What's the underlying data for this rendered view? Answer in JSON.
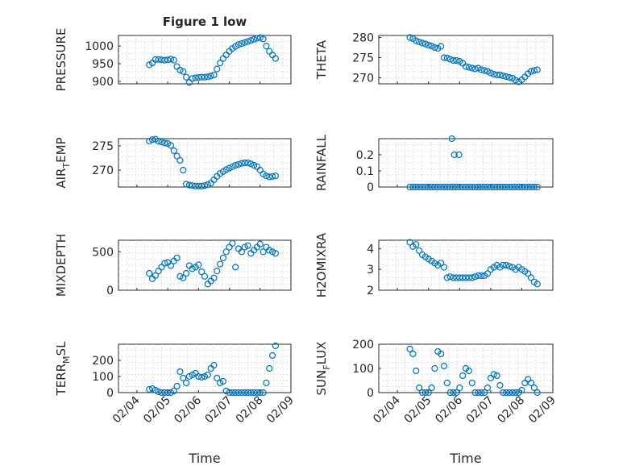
{
  "chart_data": [
    {
      "id": "pressure",
      "type": "scatter",
      "title": "Figure 1 low",
      "ylabel_main": "PRESSURE",
      "ylabel_sub": "",
      "ylabel_rest": "",
      "xlim": [
        3.4,
        9.0
      ],
      "ylim": [
        893,
        1030
      ],
      "yticks": [
        900,
        950,
        1000
      ],
      "yticklabels": [
        "900",
        "950",
        "1000"
      ],
      "xticks": [
        4,
        5,
        6,
        7,
        8,
        9
      ],
      "xticklabels": [],
      "xlabel": "",
      "x": [
        4.4,
        4.5,
        4.6,
        4.7,
        4.8,
        4.9,
        5.0,
        5.1,
        5.2,
        5.3,
        5.4,
        5.5,
        5.6,
        5.7,
        5.8,
        5.9,
        6.0,
        6.1,
        6.2,
        6.3,
        6.4,
        6.5,
        6.6,
        6.7,
        6.8,
        6.9,
        7.0,
        7.1,
        7.2,
        7.3,
        7.4,
        7.5,
        7.6,
        7.7,
        7.8,
        7.9,
        8.0,
        8.1,
        8.2,
        8.3,
        8.4,
        8.5
      ],
      "y": [
        947,
        952,
        962,
        962,
        961,
        960,
        961,
        963,
        960,
        942,
        932,
        928,
        912,
        897,
        908,
        910,
        911,
        912,
        912,
        913,
        915,
        918,
        935,
        952,
        965,
        975,
        985,
        993,
        999,
        1004,
        1007,
        1010,
        1013,
        1016,
        1019,
        1022,
        1024,
        1020,
        1000,
        985,
        975,
        965
      ]
    },
    {
      "id": "theta",
      "type": "scatter",
      "title": "",
      "ylabel_main": "THETA",
      "ylabel_sub": "",
      "ylabel_rest": "",
      "xlim": [
        3.4,
        9.0
      ],
      "ylim": [
        268.5,
        280.5
      ],
      "yticks": [
        270,
        275,
        280
      ],
      "yticklabels": [
        "270",
        "275",
        "280"
      ],
      "xticks": [
        4,
        5,
        6,
        7,
        8,
        9
      ],
      "xticklabels": [],
      "xlabel": "",
      "x": [
        4.4,
        4.5,
        4.6,
        4.7,
        4.8,
        4.9,
        5.0,
        5.1,
        5.2,
        5.3,
        5.4,
        5.5,
        5.6,
        5.7,
        5.8,
        5.9,
        6.0,
        6.1,
        6.2,
        6.3,
        6.4,
        6.5,
        6.6,
        6.7,
        6.8,
        6.9,
        7.0,
        7.1,
        7.2,
        7.3,
        7.4,
        7.5,
        7.6,
        7.7,
        7.8,
        7.9,
        8.0,
        8.1,
        8.2,
        8.3,
        8.4,
        8.5
      ],
      "y": [
        280,
        279.7,
        279.2,
        278.9,
        278.6,
        278.4,
        278.1,
        277.9,
        277.5,
        277.3,
        277.8,
        275,
        274.9,
        274.6,
        274.3,
        274.3,
        274.1,
        273.6,
        272.8,
        272.6,
        272.4,
        272.2,
        272.4,
        272.0,
        271.8,
        271.6,
        271.2,
        270.9,
        270.7,
        270.7,
        270.5,
        270.3,
        270.1,
        269.9,
        269.4,
        269.0,
        269.5,
        270.2,
        271.0,
        271.6,
        271.8,
        272.0
      ]
    },
    {
      "id": "airtemp",
      "type": "scatter",
      "title": "",
      "ylabel_main": "AIR",
      "ylabel_sub": "T",
      "ylabel_rest": "EMP",
      "xlim": [
        3.4,
        9.0
      ],
      "ylim": [
        266.5,
        276.5
      ],
      "yticks": [
        270,
        275
      ],
      "yticklabels": [
        "270",
        "275"
      ],
      "xticks": [
        4,
        5,
        6,
        7,
        8,
        9
      ],
      "xticklabels": [],
      "xlabel": "",
      "x": [
        4.4,
        4.5,
        4.6,
        4.7,
        4.8,
        4.9,
        5.0,
        5.1,
        5.2,
        5.3,
        5.4,
        5.5,
        5.6,
        5.7,
        5.8,
        5.9,
        6.0,
        6.1,
        6.2,
        6.3,
        6.4,
        6.5,
        6.6,
        6.7,
        6.8,
        6.9,
        7.0,
        7.1,
        7.2,
        7.3,
        7.4,
        7.5,
        7.6,
        7.7,
        7.8,
        7.9,
        8.0,
        8.1,
        8.2,
        8.3,
        8.4,
        8.5
      ],
      "y": [
        276,
        276.3,
        276.4,
        276.0,
        275.8,
        275.6,
        275.5,
        275.1,
        274.0,
        272.9,
        272.0,
        270.0,
        267.1,
        266.9,
        266.8,
        266.7,
        266.7,
        266.7,
        266.8,
        267.0,
        267.3,
        268.0,
        268.7,
        269.3,
        269.7,
        270.1,
        270.4,
        270.7,
        271.0,
        271.2,
        271.4,
        271.5,
        271.5,
        271.3,
        271.0,
        270.7,
        270.0,
        269.2,
        268.8,
        268.6,
        268.7,
        268.8
      ]
    },
    {
      "id": "rainfall",
      "type": "scatter",
      "title": "",
      "ylabel_main": "RAINFALL",
      "ylabel_sub": "",
      "ylabel_rest": "",
      "xlim": [
        3.4,
        9.0
      ],
      "ylim": [
        0,
        0.3
      ],
      "yticks": [
        0,
        0.1,
        0.2
      ],
      "yticklabels": [
        "0",
        "0.1",
        "0.2"
      ],
      "xticks": [
        4,
        5,
        6,
        7,
        8,
        9
      ],
      "xticklabels": [],
      "xlabel": "",
      "x": [
        4.4,
        4.5,
        4.6,
        4.7,
        4.8,
        4.9,
        5.0,
        5.1,
        5.2,
        5.3,
        5.4,
        5.5,
        5.6,
        5.7,
        5.8,
        5.9,
        6.0,
        6.1,
        6.2,
        6.3,
        6.4,
        6.5,
        6.6,
        6.7,
        6.8,
        6.9,
        7.0,
        7.1,
        7.2,
        7.3,
        7.4,
        7.5,
        7.6,
        7.7,
        7.8,
        7.9,
        8.0,
        8.1,
        8.2,
        8.3,
        8.4,
        8.5,
        5.75,
        5.83,
        5.98
      ],
      "y": [
        0,
        0,
        0,
        0,
        0,
        0,
        0,
        0,
        0,
        0,
        0,
        0,
        0,
        0,
        0,
        0,
        0,
        0,
        0,
        0,
        0,
        0,
        0,
        0,
        0,
        0,
        0,
        0,
        0,
        0,
        0,
        0,
        0,
        0,
        0,
        0,
        0,
        0,
        0,
        0,
        0,
        0,
        0.3,
        0.2,
        0.2
      ]
    },
    {
      "id": "mixdepth",
      "type": "scatter",
      "title": "",
      "ylabel_main": "MIXDEPTH",
      "ylabel_sub": "",
      "ylabel_rest": "",
      "xlim": [
        3.4,
        9.0
      ],
      "ylim": [
        0,
        650
      ],
      "yticks": [
        0,
        500
      ],
      "yticklabels": [
        "0",
        "500"
      ],
      "xticks": [
        4,
        5,
        6,
        7,
        8,
        9
      ],
      "xticklabels": [],
      "xlabel": "",
      "x": [
        4.4,
        4.5,
        4.6,
        4.7,
        4.8,
        4.9,
        5.0,
        5.1,
        5.2,
        5.3,
        5.4,
        5.5,
        5.6,
        5.7,
        5.8,
        5.9,
        6.0,
        6.1,
        6.2,
        6.3,
        6.4,
        6.5,
        6.6,
        6.7,
        6.8,
        6.9,
        7.0,
        7.1,
        7.2,
        7.3,
        7.4,
        7.5,
        7.6,
        7.7,
        7.8,
        7.9,
        8.0,
        8.1,
        8.2,
        8.3,
        8.4,
        8.5
      ],
      "y": [
        220,
        150,
        190,
        250,
        300,
        350,
        360,
        320,
        380,
        420,
        180,
        160,
        220,
        320,
        280,
        300,
        330,
        240,
        180,
        80,
        120,
        160,
        250,
        340,
        420,
        500,
        560,
        610,
        300,
        540,
        500,
        560,
        580,
        480,
        520,
        560,
        600,
        500,
        560,
        520,
        500,
        480
      ]
    },
    {
      "id": "h2omixra",
      "type": "scatter",
      "title": "",
      "ylabel_main": "H2OMIXRA",
      "ylabel_sub": "",
      "ylabel_rest": "",
      "xlim": [
        3.4,
        9.0
      ],
      "ylim": [
        2,
        4.4
      ],
      "yticks": [
        2,
        3,
        4
      ],
      "yticklabels": [
        "2",
        "3",
        "4"
      ],
      "xticks": [
        4,
        5,
        6,
        7,
        8,
        9
      ],
      "xticklabels": [],
      "xlabel": "",
      "x": [
        4.4,
        4.5,
        4.6,
        4.7,
        4.8,
        4.9,
        5.0,
        5.1,
        5.2,
        5.3,
        5.4,
        5.5,
        5.6,
        5.7,
        5.8,
        5.9,
        6.0,
        6.1,
        6.2,
        6.3,
        6.4,
        6.5,
        6.6,
        6.7,
        6.8,
        6.9,
        7.0,
        7.1,
        7.2,
        7.3,
        7.4,
        7.5,
        7.6,
        7.7,
        7.8,
        7.9,
        8.0,
        8.1,
        8.2,
        8.3,
        8.4,
        8.5
      ],
      "y": [
        4.3,
        4.1,
        4.2,
        3.9,
        3.7,
        3.6,
        3.5,
        3.4,
        3.3,
        3.2,
        3.3,
        3.1,
        2.6,
        2.65,
        2.6,
        2.6,
        2.6,
        2.6,
        2.6,
        2.6,
        2.6,
        2.65,
        2.7,
        2.7,
        2.7,
        2.8,
        3.0,
        3.1,
        3.2,
        3.1,
        3.2,
        3.2,
        3.15,
        3.1,
        3.0,
        3.1,
        3.0,
        2.9,
        2.8,
        2.6,
        2.4,
        2.3
      ]
    },
    {
      "id": "terrmsl",
      "type": "scatter",
      "title": "",
      "ylabel_main": "TERR",
      "ylabel_sub": "M",
      "ylabel_rest": "SL",
      "xlim": [
        3.4,
        9.0
      ],
      "ylim": [
        0,
        300
      ],
      "yticks": [
        0,
        100,
        200
      ],
      "yticklabels": [
        "0",
        "100",
        "200"
      ],
      "xticks": [
        4,
        5,
        6,
        7,
        8,
        9
      ],
      "xticklabels": [
        "02/04",
        "02/05",
        "02/06",
        "02/07",
        "02/08",
        "02/09"
      ],
      "xlabel": "Time",
      "x": [
        4.4,
        4.5,
        4.6,
        4.7,
        4.8,
        4.9,
        5.0,
        5.1,
        5.2,
        5.3,
        5.4,
        5.5,
        5.6,
        5.7,
        5.8,
        5.9,
        6.0,
        6.1,
        6.2,
        6.3,
        6.4,
        6.5,
        6.6,
        6.7,
        6.8,
        6.9,
        7.0,
        7.1,
        7.2,
        7.3,
        7.4,
        7.5,
        7.6,
        7.7,
        7.8,
        7.9,
        8.0,
        8.1,
        8.2,
        8.3,
        8.4,
        8.5
      ],
      "y": [
        20,
        25,
        15,
        5,
        0,
        0,
        0,
        0,
        10,
        40,
        130,
        90,
        60,
        100,
        110,
        120,
        100,
        95,
        100,
        110,
        150,
        170,
        90,
        60,
        70,
        10,
        0,
        0,
        0,
        0,
        0,
        0,
        0,
        0,
        0,
        0,
        0,
        0,
        60,
        150,
        230,
        290
      ]
    },
    {
      "id": "sunflux",
      "type": "scatter",
      "title": "",
      "ylabel_main": "SUN",
      "ylabel_sub": "F",
      "ylabel_rest": "LUX",
      "xlim": [
        3.4,
        9.0
      ],
      "ylim": [
        0,
        200
      ],
      "yticks": [
        0,
        100,
        200
      ],
      "yticklabels": [
        "0",
        "100",
        "200"
      ],
      "xticks": [
        4,
        5,
        6,
        7,
        8,
        9
      ],
      "xticklabels": [
        "02/04",
        "02/05",
        "02/06",
        "02/07",
        "02/08",
        "02/09"
      ],
      "xlabel": "Time",
      "x": [
        4.4,
        4.5,
        4.6,
        4.7,
        4.8,
        4.9,
        5.0,
        5.1,
        5.2,
        5.3,
        5.4,
        5.5,
        5.6,
        5.7,
        5.8,
        5.9,
        6.0,
        6.1,
        6.2,
        6.3,
        6.4,
        6.5,
        6.6,
        6.7,
        6.8,
        6.9,
        7.0,
        7.1,
        7.2,
        7.3,
        7.4,
        7.5,
        7.6,
        7.7,
        7.8,
        7.9,
        8.0,
        8.1,
        8.2,
        8.3,
        8.4,
        8.5
      ],
      "y": [
        180,
        160,
        90,
        20,
        0,
        0,
        0,
        20,
        100,
        170,
        160,
        110,
        40,
        0,
        0,
        0,
        20,
        70,
        100,
        90,
        40,
        0,
        0,
        0,
        0,
        20,
        60,
        75,
        70,
        30,
        0,
        0,
        0,
        0,
        0,
        0,
        10,
        40,
        55,
        40,
        20,
        0
      ]
    }
  ]
}
